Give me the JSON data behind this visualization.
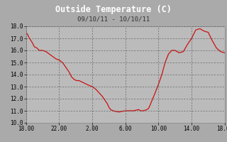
{
  "title": "Outside Temperature (C)",
  "subtitle": "09/10/11 - 10/10/11",
  "title_bg": "#000000",
  "title_color": "#ffffff",
  "subtitle_color": "#333333",
  "plot_bg": "#bbbbbb",
  "fig_bg": "#aaaaaa",
  "line_color": "#cc1111",
  "grid_color": "#444444",
  "tick_label_color": "#000000",
  "ylim": [
    10.0,
    18.0
  ],
  "yticks": [
    10.0,
    11.0,
    12.0,
    13.0,
    14.0,
    15.0,
    16.0,
    17.0,
    18.0
  ],
  "xtick_labels": [
    "18.00",
    "22.00",
    "2.00",
    "6.00",
    "10.00",
    "14.00",
    "18.00"
  ],
  "x_hours": [
    0,
    4,
    8,
    12,
    16,
    20,
    24
  ],
  "temperature_x": [
    0.0,
    0.2,
    0.4,
    0.7,
    1.0,
    1.3,
    1.6,
    2.0,
    2.4,
    2.8,
    3.2,
    3.6,
    4.0,
    4.4,
    4.8,
    5.2,
    5.5,
    5.8,
    6.1,
    6.4,
    6.7,
    7.0,
    7.3,
    7.6,
    8.0,
    8.4,
    8.8,
    9.2,
    9.5,
    9.8,
    10.0,
    10.2,
    10.5,
    10.8,
    11.2,
    11.6,
    12.0,
    12.5,
    13.0,
    13.3,
    13.6,
    13.8,
    14.0,
    14.2,
    14.4,
    14.6,
    14.8,
    15.0,
    15.3,
    15.6,
    16.0,
    16.4,
    16.8,
    17.2,
    17.6,
    18.0,
    18.5,
    19.0,
    19.5,
    20.0,
    20.5,
    21.0,
    21.5,
    22.0,
    22.5,
    23.0,
    23.5,
    24.0
  ],
  "temperature_y": [
    17.5,
    17.3,
    17.0,
    16.7,
    16.3,
    16.2,
    16.0,
    16.0,
    15.9,
    15.7,
    15.5,
    15.3,
    15.2,
    15.0,
    14.6,
    14.2,
    13.8,
    13.6,
    13.5,
    13.5,
    13.4,
    13.3,
    13.2,
    13.1,
    13.0,
    12.8,
    12.5,
    12.2,
    11.9,
    11.6,
    11.3,
    11.1,
    11.0,
    10.95,
    10.9,
    10.95,
    11.0,
    11.0,
    11.0,
    11.05,
    11.1,
    11.0,
    11.0,
    11.0,
    11.05,
    11.1,
    11.2,
    11.5,
    12.0,
    12.5,
    13.2,
    14.0,
    15.0,
    15.7,
    16.0,
    16.0,
    15.8,
    15.9,
    16.5,
    17.0,
    17.7,
    17.8,
    17.6,
    17.5,
    16.8,
    16.2,
    15.9,
    15.8
  ]
}
